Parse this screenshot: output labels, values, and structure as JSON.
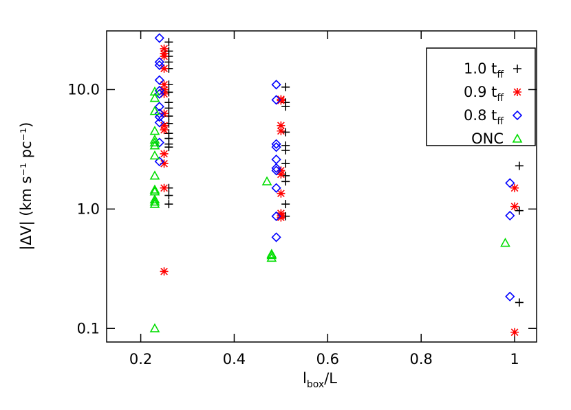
{
  "chart_data": {
    "type": "scatter",
    "xlabel": [
      "l",
      "box",
      "/L"
    ],
    "ylabel": "|ΔV| (km s⁻¹ pc⁻¹)",
    "xlim": [
      0.127,
      1.047
    ],
    "xticks": [
      0.2,
      0.4,
      0.6,
      0.8,
      1.0
    ],
    "ylim": [
      0.077,
      31
    ],
    "yticks": [
      0.1,
      {
        "value": 1,
        "label": "1.0"
      },
      {
        "value": 10,
        "label": "10.0"
      }
    ],
    "log_y": true,
    "legend": "upper right",
    "series": [
      {
        "name": [
          "1.0 t",
          "ff"
        ],
        "color": "#000000",
        "marker": "plus",
        "x": [
          0.26,
          0.26,
          0.26,
          0.26,
          0.26,
          0.26,
          0.26,
          0.26,
          0.26,
          0.26,
          0.26,
          0.26,
          0.26,
          0.26,
          0.26,
          0.26,
          0.26,
          0.26,
          0.51,
          0.51,
          0.51,
          0.51,
          0.51,
          0.51,
          0.51,
          0.51,
          0.51,
          0.51,
          0.51,
          1.01,
          1.01,
          1.01
        ],
        "values": [
          25,
          21,
          19,
          17,
          15,
          11,
          9.5,
          7.8,
          7.0,
          6.0,
          5.2,
          4.3,
          3.9,
          3.5,
          3.3,
          1.5,
          1.3,
          1.1,
          10.5,
          7.8,
          7.2,
          4.4,
          3.4,
          3.1,
          2.4,
          1.9,
          1.7,
          1.1,
          0.87,
          2.3,
          0.97,
          0.165
        ]
      },
      {
        "name": [
          "0.9 t",
          "ff"
        ],
        "color": "#ff0000",
        "marker": "asterisk",
        "x": [
          0.25,
          0.25,
          0.25,
          0.25,
          0.25,
          0.25,
          0.25,
          0.25,
          0.25,
          0.25,
          0.25,
          0.25,
          0.25,
          0.25,
          0.5,
          0.5,
          0.5,
          0.5,
          0.5,
          0.5,
          0.5,
          0.5,
          0.5,
          0.5,
          1.0,
          1.0,
          1.0
        ],
        "values": [
          22,
          20,
          19,
          15,
          11,
          10,
          9.2,
          6.3,
          5.0,
          4.6,
          2.9,
          2.4,
          1.5,
          0.3,
          8.3,
          8.1,
          5.0,
          4.5,
          2.1,
          1.95,
          1.35,
          0.92,
          0.88,
          0.85,
          1.5,
          1.05,
          0.093
        ]
      },
      {
        "name": [
          "0.8 t",
          "ff"
        ],
        "color": "#0000ff",
        "marker": "diamond",
        "x": [
          0.24,
          0.24,
          0.24,
          0.24,
          0.24,
          0.24,
          0.24,
          0.24,
          0.24,
          0.24,
          0.24,
          0.24,
          0.49,
          0.49,
          0.49,
          0.49,
          0.49,
          0.49,
          0.49,
          0.49,
          0.49,
          0.49,
          0.99,
          0.99,
          0.99
        ],
        "values": [
          27,
          17,
          16,
          12,
          9.8,
          9.2,
          7.2,
          6.3,
          5.9,
          5.3,
          3.6,
          2.5,
          11,
          8.2,
          3.5,
          3.3,
          2.6,
          2.2,
          2.1,
          1.5,
          0.87,
          0.58,
          1.65,
          0.88,
          0.185
        ]
      },
      {
        "name": [
          "ONC"
        ],
        "color": "#00dd00",
        "marker": "triangle",
        "x": [
          0.23,
          0.23,
          0.23,
          0.23,
          0.23,
          0.23,
          0.23,
          0.23,
          0.23,
          0.23,
          0.23,
          0.23,
          0.23,
          0.23,
          0.23,
          0.47,
          0.48,
          0.48,
          0.48,
          0.98
        ],
        "values": [
          9.6,
          8.5,
          6.6,
          4.5,
          3.8,
          3.6,
          3.4,
          2.8,
          1.9,
          1.45,
          1.4,
          1.2,
          1.15,
          1.1,
          0.1,
          1.7,
          0.42,
          0.41,
          0.39,
          0.52
        ]
      }
    ]
  }
}
